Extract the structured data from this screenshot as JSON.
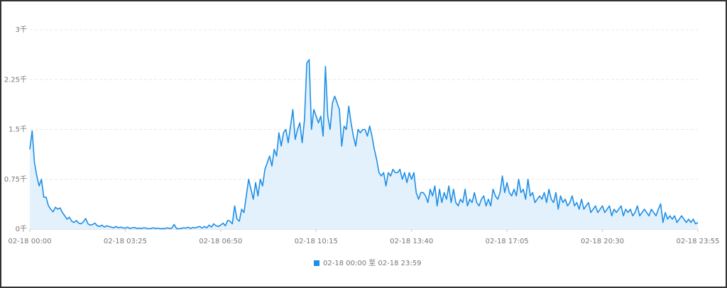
{
  "chart_data": {
    "type": "area",
    "categories": [
      "02-18 00:00",
      null,
      null,
      null,
      null,
      null,
      null,
      null,
      null,
      null,
      null,
      null,
      null,
      null,
      null,
      null,
      null,
      null,
      null,
      null,
      null,
      null,
      null,
      null,
      null,
      null,
      null,
      null,
      null,
      null,
      null,
      null,
      null,
      null,
      null,
      null,
      null,
      null,
      null,
      null,
      null,
      "02-18 03:25",
      null,
      null,
      null,
      null,
      null,
      null,
      null,
      null,
      null,
      null,
      null,
      null,
      null,
      null,
      null,
      null,
      null,
      null,
      null,
      null,
      null,
      null,
      null,
      null,
      null,
      null,
      null,
      null,
      null,
      null,
      null,
      null,
      null,
      null,
      null,
      null,
      null,
      null,
      null,
      null,
      "02-18 06:50",
      null,
      null,
      null,
      null,
      null,
      null,
      null,
      null,
      null,
      null,
      null,
      null,
      null,
      null,
      null,
      null,
      null,
      null,
      null,
      null,
      null,
      null,
      null,
      null,
      null,
      null,
      null,
      null,
      null,
      null,
      null,
      null,
      null,
      null,
      null,
      null,
      null,
      null,
      null,
      null,
      "02-18 10:15",
      null,
      null,
      null,
      null,
      null,
      null,
      null,
      null,
      null,
      null,
      null,
      null,
      null,
      null,
      null,
      null,
      null,
      null,
      null,
      null,
      null,
      null,
      null,
      null,
      null,
      null,
      null,
      null,
      null,
      null,
      null,
      null,
      null,
      null,
      null,
      null,
      null,
      null,
      null,
      null,
      "02-18 13:40",
      null,
      null,
      null,
      null,
      null,
      null,
      null,
      null,
      null,
      null,
      null,
      null,
      null,
      null,
      null,
      null,
      null,
      null,
      null,
      null,
      null,
      null,
      null,
      null,
      null,
      null,
      null,
      null,
      null,
      null,
      null,
      null,
      null,
      null,
      null,
      null,
      null,
      null,
      null,
      null,
      "02-18 17:05",
      null,
      null,
      null,
      null,
      null,
      null,
      null,
      null,
      null,
      null,
      null,
      null,
      null,
      null,
      null,
      null,
      null,
      null,
      null,
      null,
      null,
      null,
      null,
      null,
      null,
      null,
      null,
      null,
      null,
      null,
      null,
      null,
      null,
      null,
      null,
      null,
      null,
      null,
      null,
      null,
      "02-18 20:30",
      null,
      null,
      null,
      null,
      null,
      null,
      null,
      null,
      null,
      null,
      null,
      null,
      null,
      null,
      null,
      null,
      null,
      null,
      null,
      null,
      null,
      null,
      null,
      null,
      null,
      null,
      null,
      null,
      null,
      null,
      null,
      null,
      null,
      null,
      null,
      null,
      null,
      null,
      null,
      null,
      "02-18 23:55"
    ],
    "series": [
      {
        "name": "02-18 00:00 至 02-18 23:59",
        "color": "#1e8fe6",
        "fill": "#e3f1fc",
        "values": [
          1200,
          1480,
          1000,
          800,
          650,
          750,
          480,
          480,
          350,
          300,
          260,
          330,
          300,
          320,
          250,
          200,
          150,
          180,
          120,
          100,
          130,
          90,
          80,
          110,
          160,
          80,
          60,
          70,
          90,
          50,
          40,
          60,
          30,
          50,
          40,
          30,
          20,
          40,
          20,
          30,
          20,
          15,
          30,
          10,
          20,
          25,
          10,
          15,
          10,
          20,
          15,
          5,
          10,
          20,
          10,
          15,
          5,
          10,
          5,
          20,
          10,
          15,
          70,
          10,
          5,
          10,
          20,
          15,
          30,
          10,
          25,
          20,
          30,
          40,
          15,
          40,
          20,
          60,
          30,
          80,
          50,
          40,
          60,
          90,
          50,
          130,
          120,
          80,
          350,
          150,
          120,
          300,
          250,
          500,
          750,
          600,
          450,
          700,
          500,
          750,
          650,
          900,
          1000,
          1100,
          950,
          1200,
          1100,
          1450,
          1250,
          1450,
          1500,
          1300,
          1550,
          1800,
          1350,
          1500,
          1600,
          1300,
          1650,
          2500,
          2550,
          1500,
          1800,
          1700,
          1600,
          1700,
          1400,
          2450,
          1700,
          1500,
          1900,
          2000,
          1900,
          1800,
          1250,
          1550,
          1500,
          1850,
          1600,
          1400,
          1250,
          1500,
          1450,
          1500,
          1500,
          1400,
          1550,
          1400,
          1200,
          1050,
          850,
          800,
          850,
          650,
          850,
          800,
          900,
          850,
          850,
          900,
          750,
          850,
          700,
          850,
          750,
          850,
          550,
          450,
          550,
          550,
          500,
          400,
          600,
          500,
          650,
          350,
          600,
          400,
          550,
          450,
          650,
          400,
          600,
          400,
          350,
          450,
          400,
          600,
          350,
          450,
          400,
          550,
          400,
          350,
          450,
          500,
          350,
          450,
          350,
          600,
          500,
          450,
          550,
          800,
          550,
          700,
          550,
          500,
          600,
          500,
          750,
          550,
          600,
          450,
          750,
          500,
          550,
          400,
          450,
          500,
          450,
          550,
          400,
          600,
          450,
          400,
          550,
          300,
          500,
          400,
          450,
          350,
          400,
          500,
          350,
          400,
          300,
          450,
          300,
          350,
          400,
          250,
          300,
          350,
          250,
          300,
          350,
          250,
          300,
          350,
          200,
          300,
          250,
          300,
          350,
          200,
          300,
          250,
          300,
          200,
          250,
          350,
          200,
          250,
          300,
          250,
          200,
          300,
          250,
          200,
          300,
          380,
          100,
          250,
          150,
          200,
          150,
          200,
          100,
          150,
          200,
          150,
          100,
          150,
          100,
          150,
          80,
          100
        ]
      }
    ],
    "ylim": [
      0,
      3000
    ],
    "yticks": [
      {
        "value": 0,
        "label": "0千"
      },
      {
        "value": 750,
        "label": "0.75千"
      },
      {
        "value": 1500,
        "label": "1.5千"
      },
      {
        "value": 2250,
        "label": "2.25千"
      },
      {
        "value": 3000,
        "label": "3千"
      }
    ],
    "grid": true,
    "legend": "bottom"
  }
}
